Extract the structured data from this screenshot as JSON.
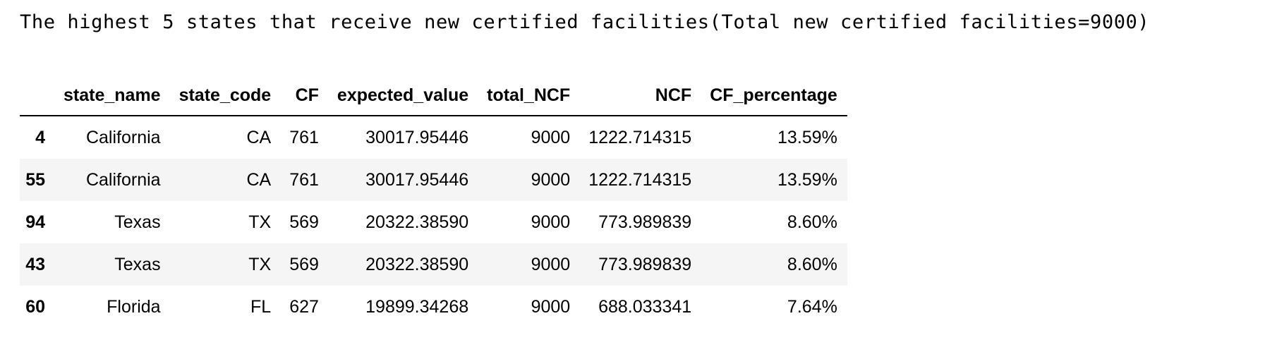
{
  "title": "The highest 5 states that receive new certified facilities(Total new certified facilities=9000)",
  "table": {
    "columns": [
      "",
      "state_name",
      "state_code",
      "CF",
      "expected_value",
      "total_NCF",
      "NCF",
      "CF_percentage"
    ],
    "rows": [
      {
        "index": "4",
        "state_name": "California",
        "state_code": "CA",
        "cf": "761",
        "expected_value": "30017.95446",
        "total_ncf": "9000",
        "ncf": "1222.714315",
        "cf_percentage": "13.59%"
      },
      {
        "index": "55",
        "state_name": "California",
        "state_code": "CA",
        "cf": "761",
        "expected_value": "30017.95446",
        "total_ncf": "9000",
        "ncf": "1222.714315",
        "cf_percentage": "13.59%"
      },
      {
        "index": "94",
        "state_name": "Texas",
        "state_code": "TX",
        "cf": "569",
        "expected_value": "20322.38590",
        "total_ncf": "9000",
        "ncf": "773.989839",
        "cf_percentage": "8.60%"
      },
      {
        "index": "43",
        "state_name": "Texas",
        "state_code": "TX",
        "cf": "569",
        "expected_value": "20322.38590",
        "total_ncf": "9000",
        "ncf": "773.989839",
        "cf_percentage": "8.60%"
      },
      {
        "index": "60",
        "state_name": "Florida",
        "state_code": "FL",
        "cf": "627",
        "expected_value": "19899.34268",
        "total_ncf": "9000",
        "ncf": "688.033341",
        "cf_percentage": "7.64%"
      }
    ]
  }
}
